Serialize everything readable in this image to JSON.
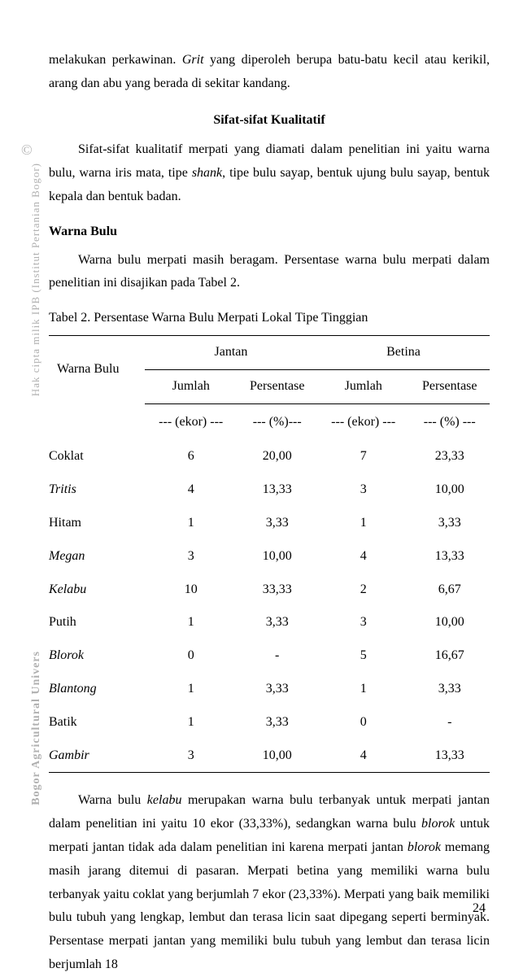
{
  "paragraphs": {
    "p1_pre": "melakukan perkawinan. ",
    "p1_italic": "Grit",
    "p1_post": " yang diperoleh berupa batu-batu kecil atau kerikil, arang dan abu yang berada di sekitar kandang.",
    "section_title": "Sifat-sifat Kualitatif",
    "p2_pre": "Sifat-sifat kualitatif merpati yang diamati dalam penelitian ini yaitu warna bulu, warna iris mata, tipe ",
    "p2_italic": "shank",
    "p2_post": ", tipe bulu sayap, bentuk ujung bulu sayap, bentuk kepala dan bentuk badan.",
    "subsection_title": "Warna Bulu",
    "p3": "Warna bulu merpati masih beragam. Persentase warna bulu merpati dalam penelitian ini disajikan pada Tabel 2.",
    "table_caption": "Tabel 2. Persentase Warna Bulu Merpati Lokal Tipe Tinggian",
    "p4_1": "Warna bulu ",
    "p4_italic1": "kelabu",
    "p4_2": " merupakan warna bulu terbanyak untuk merpati jantan dalam penelitian ini yaitu 10 ekor (33,33%), sedangkan warna bulu ",
    "p4_italic2": "blorok",
    "p4_3": " untuk merpati jantan tidak ada dalam penelitian ini karena merpati jantan ",
    "p4_italic3": "blorok",
    "p4_4": " memang masih jarang ditemui di pasaran. Merpati betina yang memiliki warna bulu terbanyak yaitu coklat yang berjumlah 7 ekor (23,33%). Merpati yang baik memiliki bulu tubuh yang lengkap, lembut dan terasa licin saat dipegang seperti berminyak. Persentase merpati jantan yang memiliki bulu tubuh yang lembut dan terasa licin berjumlah 18"
  },
  "table": {
    "col_label": "Warna Bulu",
    "group1": "Jantan",
    "group2": "Betina",
    "sub_jumlah": "Jumlah",
    "sub_persentase": "Persentase",
    "unit_jumlah": "--- (ekor) ---",
    "unit_persentase": "--- (%)---",
    "unit_persentase2": "--- (%) ---",
    "rows": [
      {
        "name": "Coklat",
        "italic": false,
        "j_n": "6",
        "j_p": "20,00",
        "b_n": "7",
        "b_p": "23,33"
      },
      {
        "name": "Tritis",
        "italic": true,
        "j_n": "4",
        "j_p": "13,33",
        "b_n": "3",
        "b_p": "10,00"
      },
      {
        "name": "Hitam",
        "italic": false,
        "j_n": "1",
        "j_p": "3,33",
        "b_n": "1",
        "b_p": "3,33"
      },
      {
        "name": "Megan",
        "italic": true,
        "j_n": "3",
        "j_p": "10,00",
        "b_n": "4",
        "b_p": "13,33"
      },
      {
        "name": "Kelabu",
        "italic": true,
        "j_n": "10",
        "j_p": "33,33",
        "b_n": "2",
        "b_p": "6,67"
      },
      {
        "name": "Putih",
        "italic": false,
        "j_n": "1",
        "j_p": "3,33",
        "b_n": "3",
        "b_p": "10,00"
      },
      {
        "name": "Blorok",
        "italic": true,
        "j_n": "0",
        "j_p": "-",
        "b_n": "5",
        "b_p": "16,67"
      },
      {
        "name": "Blantong",
        "italic": true,
        "j_n": "1",
        "j_p": "3,33",
        "b_n": "1",
        "b_p": "3,33"
      },
      {
        "name": "Batik",
        "italic": false,
        "j_n": "1",
        "j_p": "3,33",
        "b_n": "0",
        "b_p": "-"
      },
      {
        "name": "Gambir",
        "italic": true,
        "j_n": "3",
        "j_p": "10,00",
        "b_n": "4",
        "b_p": "13,33"
      }
    ]
  },
  "page_number": "24",
  "watermark_c": "©",
  "watermark1": "Hak cipta milik IPB (Institut Pertanian Bogor)",
  "watermark2": "Bogor Agricultural Univers"
}
